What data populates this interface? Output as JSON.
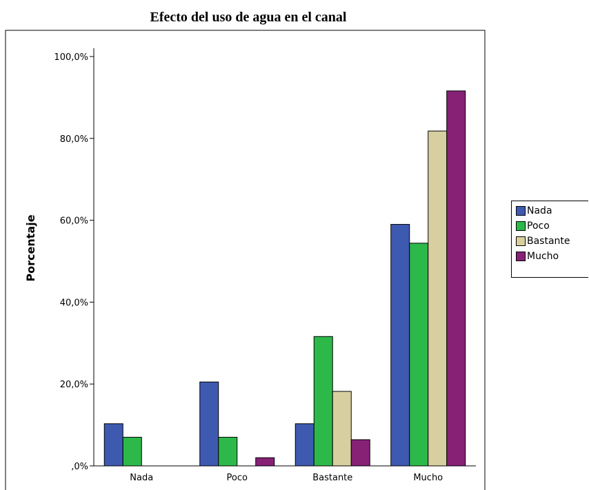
{
  "chart_data": {
    "type": "bar",
    "title": "Efecto del uso de agua en el canal",
    "xlabel": "",
    "ylabel": "Porcentaje",
    "categories": [
      "Nada",
      "Poco",
      "Bastante",
      "Mucho"
    ],
    "yticks": [
      ",0%",
      "20,0%",
      "40,0%",
      "60,0%",
      "80,0%",
      "100,0%"
    ],
    "ylim": [
      0,
      100
    ],
    "grid": false,
    "legend_position": "right",
    "series": [
      {
        "name": "Nada",
        "color": "#3e5ab0",
        "values": [
          10.3,
          20.5,
          10.3,
          59.0
        ]
      },
      {
        "name": "Poco",
        "color": "#2db84a",
        "values": [
          7.0,
          7.0,
          31.6,
          54.4
        ]
      },
      {
        "name": "Bastante",
        "color": "#d8cfa0",
        "values": [
          0,
          0,
          18.2,
          81.8
        ]
      },
      {
        "name": "Mucho",
        "color": "#862176",
        "values": [
          0,
          2.0,
          6.4,
          91.6
        ]
      }
    ]
  }
}
